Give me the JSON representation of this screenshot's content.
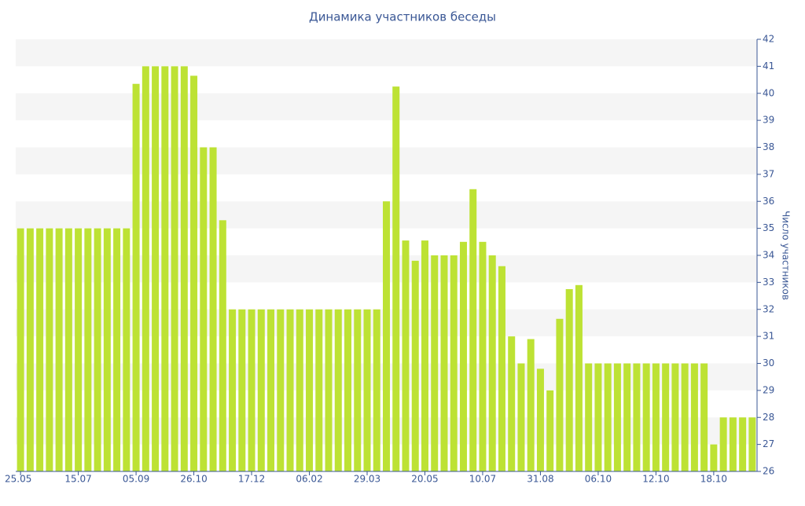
{
  "chart_data": {
    "type": "bar",
    "title": "Динамика участников беседы",
    "y_label": "Число участников",
    "categories": [
      "25.05",
      null,
      null,
      null,
      null,
      null,
      "15.07",
      null,
      null,
      null,
      null,
      null,
      "05.09",
      null,
      null,
      null,
      null,
      null,
      "26.10",
      null,
      null,
      null,
      null,
      null,
      "17.12",
      null,
      null,
      null,
      null,
      null,
      "06.02",
      null,
      null,
      null,
      null,
      null,
      "29.03",
      null,
      null,
      null,
      null,
      null,
      "20.05",
      null,
      null,
      null,
      null,
      null,
      "10.07",
      null,
      null,
      null,
      null,
      null,
      "31.08",
      null,
      null,
      null,
      null,
      null,
      "06.10",
      null,
      null,
      null,
      null,
      null,
      "12.10",
      null,
      null,
      null,
      null,
      null,
      "18.10",
      null,
      null,
      null,
      null
    ],
    "values": [
      35,
      35,
      35,
      35,
      35,
      35,
      35,
      35,
      35,
      35,
      35,
      35,
      40.35,
      41,
      41,
      41,
      41,
      41,
      40.65,
      38,
      38,
      35.3,
      32,
      32,
      32,
      32,
      32,
      32,
      32,
      32,
      32,
      32,
      32,
      32,
      32,
      32,
      32,
      32,
      36,
      40.25,
      34.55,
      33.8,
      34.55,
      34,
      34,
      34,
      34.5,
      36.45,
      34.5,
      34,
      33.6,
      31,
      30,
      30.9,
      29.8,
      29,
      31.65,
      32.75,
      32.9,
      30,
      30,
      30,
      30,
      30,
      30,
      30,
      30,
      30,
      30,
      30,
      30,
      30,
      27,
      28,
      28,
      28,
      28
    ],
    "color": "#bde234",
    "ylim": [
      26,
      42
    ],
    "yticks": [
      26,
      27,
      28,
      29,
      30,
      31,
      32,
      33,
      34,
      35,
      36,
      37,
      38,
      39,
      40,
      41,
      42
    ],
    "grid": true,
    "y_axis_side": "right"
  }
}
